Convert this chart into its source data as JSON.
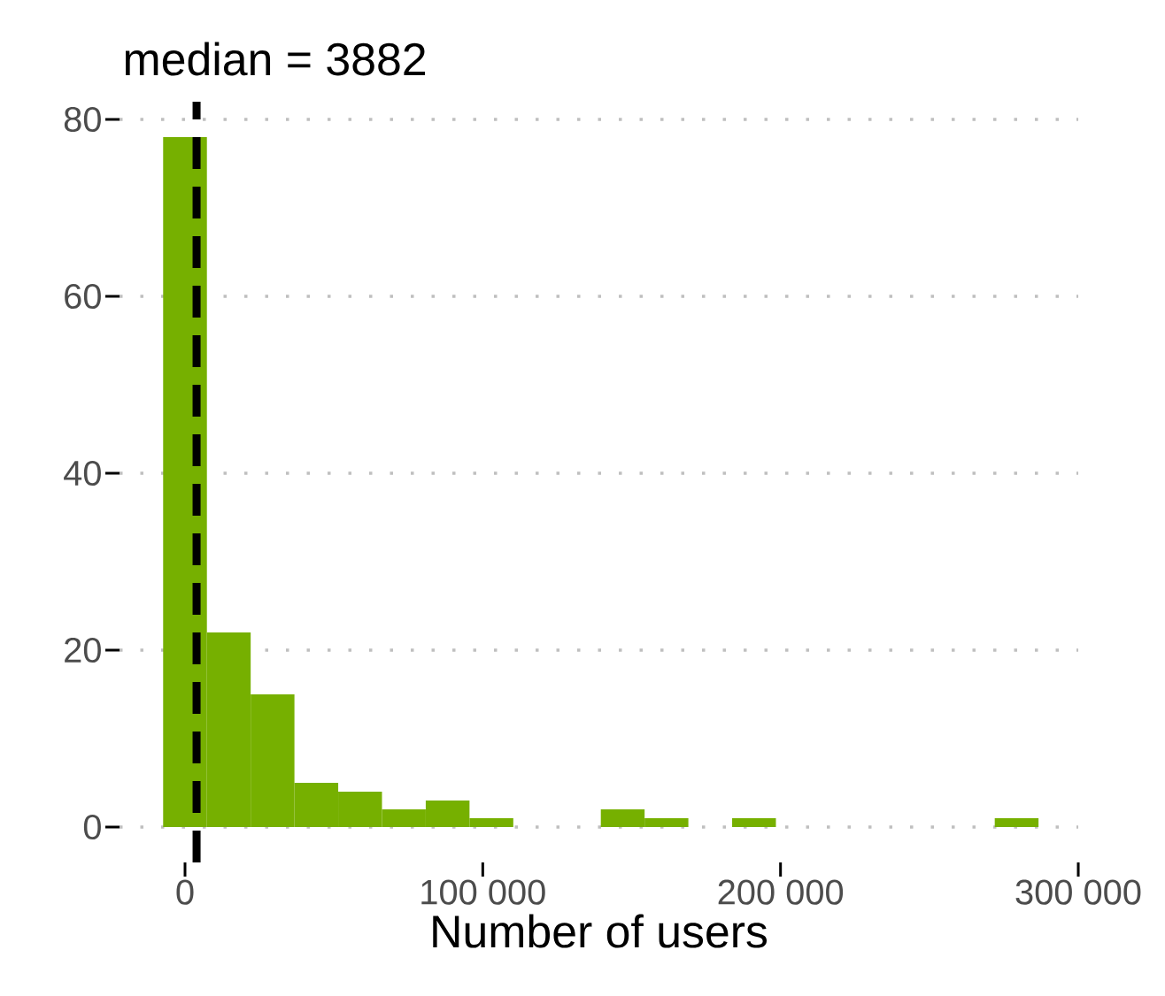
{
  "chart_data": {
    "type": "histogram",
    "title": "median = 3882",
    "xlabel": "Number of users",
    "bins": [
      -7350,
      7350,
      22050,
      36750,
      51450,
      66150,
      80850,
      95550,
      110250,
      124950,
      139650,
      154350,
      169050,
      183750,
      198450,
      213150,
      227850,
      242550,
      257250,
      271950,
      286650
    ],
    "values": [
      78,
      22,
      15,
      5,
      4,
      2,
      3,
      1,
      0,
      0,
      2,
      1,
      0,
      1,
      0,
      0,
      0,
      0,
      0,
      1
    ],
    "color": "#76b000",
    "xlim": [
      -22000,
      300000
    ],
    "ylim": [
      -4,
      82
    ],
    "xticks": [
      0,
      {
        "value": 100000,
        "label": "100 000"
      },
      {
        "value": 200000,
        "label": "200 000"
      },
      {
        "value": 300000,
        "label": "300 000"
      }
    ],
    "yticks": [
      0,
      20,
      40,
      60,
      80
    ],
    "grid": "y",
    "ref_lines": [
      {
        "axis": "x",
        "value": 3882,
        "color": "#000000",
        "line_style": "dashed"
      }
    ]
  }
}
